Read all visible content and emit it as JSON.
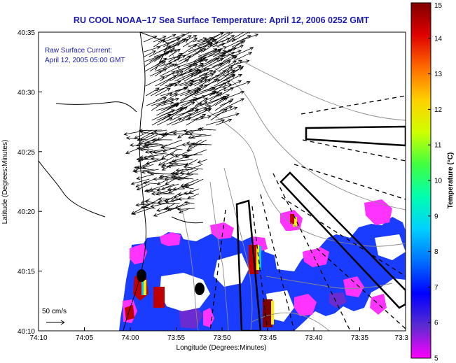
{
  "title": "RU COOL  NOAA–17  Sea Surface Temperature:  April 12, 2006 0252 GMT",
  "annotation": {
    "line1": "Raw Surface Current:",
    "line2": "April 12, 2005 05:00 GMT"
  },
  "scale_label": "50 cm/s",
  "axes": {
    "xlabel": "Longitude (Degrees:Minutes)",
    "ylabel": "Latitude (Degrees:Minutes)",
    "xticks": [
      "74:10",
      "74:05",
      "74:00",
      "73:55",
      "73:50",
      "73:45",
      "73:40",
      "73:35",
      "73:3"
    ],
    "yticks": [
      "40:35",
      "40:30",
      "40:25",
      "40:20",
      "40:15",
      "40:10"
    ]
  },
  "colorbar": {
    "label": "Temperature (°C)",
    "ticks": [
      "15",
      "14",
      "13",
      "12",
      "11",
      "10",
      "9",
      "8",
      "7",
      "6",
      "5"
    ],
    "stops": [
      "#ff00ff",
      "#5a2bd0",
      "#0000ff",
      "#0070ff",
      "#00d0ff",
      "#00ffb0",
      "#40ff40",
      "#d0ff00",
      "#ffd000",
      "#ff6a00",
      "#e00000",
      "#800000"
    ]
  },
  "map_features": {
    "sst_colors": {
      "background_blue": "#1a3cff",
      "magenta": "#ff33ff",
      "purple": "#6a2bd0",
      "red": "#c00000",
      "dark_red": "#800000",
      "cyan": "#00c8ff",
      "yellow": "#ffee00"
    },
    "markers": [
      "station-marker-west",
      "station-marker-east"
    ]
  }
}
